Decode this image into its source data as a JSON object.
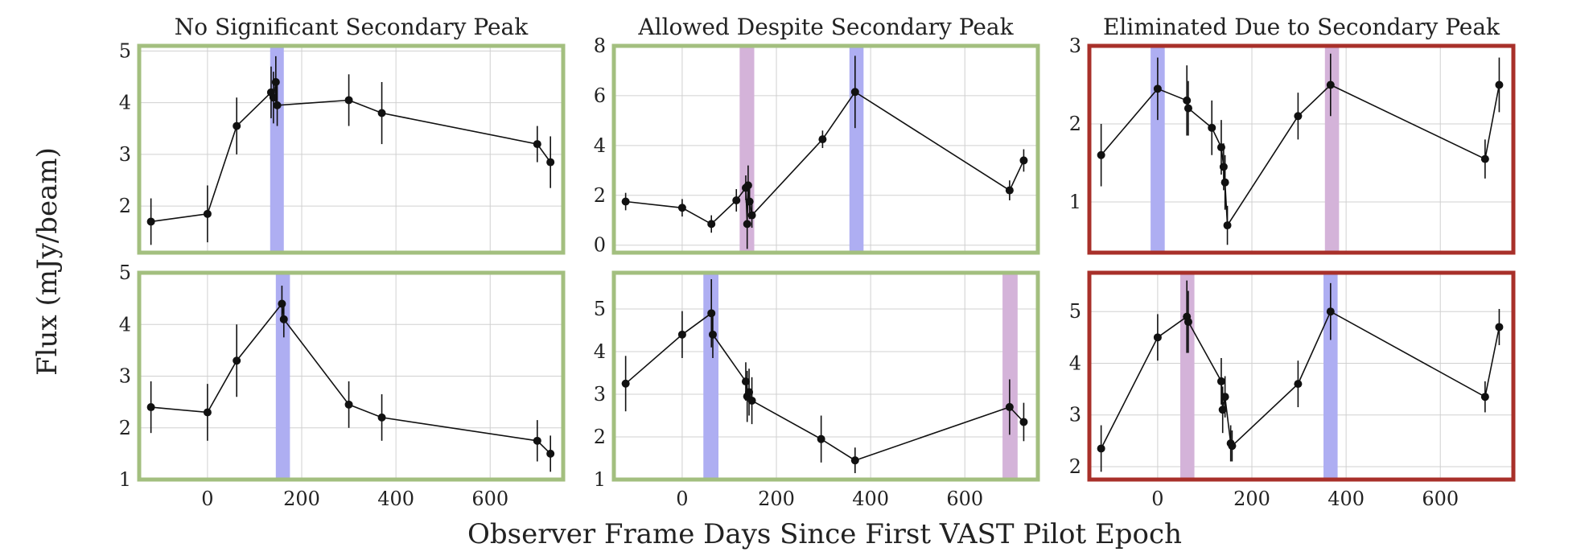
{
  "figure": {
    "ylabel": "Flux (mJy/beam)",
    "xlabel": "Observer Frame Days Since First VAST Pilot Epoch"
  },
  "colors": {
    "accepted_frame": "#a3bf7f",
    "eliminated_frame": "#a8302a",
    "primary_peak": "#aeaef2",
    "secondary_peak": "#d4b3d9",
    "line": "#111111",
    "grid": "#d0d0d0"
  },
  "chart_data": [
    {
      "type": "line",
      "column_title": "No Significant Secondary Peak",
      "status": "accepted",
      "xlim": [
        -145,
        755
      ],
      "ylim": [
        1.1,
        5.1
      ],
      "xticks": [
        0,
        200,
        400,
        600
      ],
      "yticks": [
        2,
        3,
        4,
        5
      ],
      "primary_peak": [
        133,
        162
      ],
      "secondary_peak": null,
      "points": [
        {
          "x": -120,
          "y": 1.7,
          "err": 0.45
        },
        {
          "x": 0,
          "y": 1.85,
          "err": 0.55
        },
        {
          "x": 62,
          "y": 3.55,
          "err": 0.55
        },
        {
          "x": 135,
          "y": 4.2,
          "err": 0.5
        },
        {
          "x": 140,
          "y": 4.1,
          "err": 0.5
        },
        {
          "x": 145,
          "y": 4.4,
          "err": 0.5
        },
        {
          "x": 148,
          "y": 3.95,
          "err": 0.4
        },
        {
          "x": 300,
          "y": 4.05,
          "err": 0.5
        },
        {
          "x": 370,
          "y": 3.8,
          "err": 0.6
        },
        {
          "x": 700,
          "y": 3.2,
          "err": 0.35
        },
        {
          "x": 728,
          "y": 2.85,
          "err": 0.5
        }
      ]
    },
    {
      "type": "line",
      "column_title": "",
      "status": "accepted",
      "xlim": [
        -145,
        755
      ],
      "ylim": [
        1.0,
        5.0
      ],
      "xticks": [
        0,
        200,
        400,
        600
      ],
      "yticks": [
        1,
        2,
        3,
        4,
        5
      ],
      "primary_peak": [
        145,
        175
      ],
      "secondary_peak": null,
      "points": [
        {
          "x": -120,
          "y": 2.4,
          "err": 0.5
        },
        {
          "x": 0,
          "y": 2.3,
          "err": 0.55
        },
        {
          "x": 62,
          "y": 3.3,
          "err": 0.7
        },
        {
          "x": 158,
          "y": 4.4,
          "err": 0.35
        },
        {
          "x": 162,
          "y": 4.1,
          "err": 0.35
        },
        {
          "x": 300,
          "y": 2.45,
          "err": 0.45
        },
        {
          "x": 370,
          "y": 2.2,
          "err": 0.45
        },
        {
          "x": 700,
          "y": 1.75,
          "err": 0.4
        },
        {
          "x": 728,
          "y": 1.5,
          "err": 0.35
        }
      ]
    },
    {
      "type": "line",
      "column_title": "Allowed Despite Secondary Peak",
      "status": "accepted",
      "xlim": [
        -145,
        755
      ],
      "ylim": [
        -0.3,
        8.0
      ],
      "xticks": [
        0,
        200,
        400,
        600
      ],
      "yticks": [
        0,
        2,
        4,
        6,
        8
      ],
      "primary_peak": [
        355,
        385
      ],
      "secondary_peak": [
        122,
        153
      ],
      "points": [
        {
          "x": -120,
          "y": 1.75,
          "err": 0.35
        },
        {
          "x": 0,
          "y": 1.5,
          "err": 0.35
        },
        {
          "x": 62,
          "y": 0.85,
          "err": 0.35
        },
        {
          "x": 115,
          "y": 1.8,
          "err": 0.45
        },
        {
          "x": 135,
          "y": 2.3,
          "err": 0.5
        },
        {
          "x": 138,
          "y": 0.85,
          "err": 1.0
        },
        {
          "x": 140,
          "y": 2.4,
          "err": 0.8
        },
        {
          "x": 143,
          "y": 1.75,
          "err": 0.7
        },
        {
          "x": 148,
          "y": 1.2,
          "err": 0.5
        },
        {
          "x": 298,
          "y": 4.25,
          "err": 0.35
        },
        {
          "x": 367,
          "y": 6.15,
          "err": 1.45
        },
        {
          "x": 695,
          "y": 2.2,
          "err": 0.4
        },
        {
          "x": 725,
          "y": 3.4,
          "err": 0.45
        }
      ]
    },
    {
      "type": "line",
      "column_title": "",
      "status": "accepted",
      "xlim": [
        -145,
        755
      ],
      "ylim": [
        1.0,
        5.85
      ],
      "xticks": [
        0,
        200,
        400,
        600
      ],
      "yticks": [
        1,
        2,
        3,
        4,
        5
      ],
      "primary_peak": [
        45,
        77
      ],
      "secondary_peak": [
        680,
        712
      ],
      "points": [
        {
          "x": -120,
          "y": 3.25,
          "err": 0.65
        },
        {
          "x": 0,
          "y": 4.4,
          "err": 0.55
        },
        {
          "x": 62,
          "y": 4.9,
          "err": 0.8
        },
        {
          "x": 65,
          "y": 4.4,
          "err": 0.55
        },
        {
          "x": 135,
          "y": 3.3,
          "err": 0.45
        },
        {
          "x": 138,
          "y": 2.95,
          "err": 0.6
        },
        {
          "x": 142,
          "y": 3.05,
          "err": 0.55
        },
        {
          "x": 148,
          "y": 2.85,
          "err": 0.55
        },
        {
          "x": 295,
          "y": 1.95,
          "err": 0.55
        },
        {
          "x": 367,
          "y": 1.45,
          "err": 0.3
        },
        {
          "x": 695,
          "y": 2.7,
          "err": 0.65
        },
        {
          "x": 725,
          "y": 2.35,
          "err": 0.45
        }
      ]
    },
    {
      "type": "line",
      "column_title": "Eliminated Due to Secondary Peak",
      "status": "eliminated",
      "xlim": [
        -145,
        755
      ],
      "ylim": [
        0.35,
        3.0
      ],
      "xticks": [
        0,
        200,
        400,
        600
      ],
      "yticks": [
        1,
        2,
        3
      ],
      "primary_peak": [
        -15,
        15
      ],
      "secondary_peak": [
        355,
        385
      ],
      "points": [
        {
          "x": -120,
          "y": 1.6,
          "err": 0.4
        },
        {
          "x": 0,
          "y": 2.45,
          "err": 0.4
        },
        {
          "x": 62,
          "y": 2.3,
          "err": 0.45
        },
        {
          "x": 65,
          "y": 2.2,
          "err": 0.35
        },
        {
          "x": 115,
          "y": 1.95,
          "err": 0.35
        },
        {
          "x": 135,
          "y": 1.7,
          "err": 0.35
        },
        {
          "x": 140,
          "y": 1.45,
          "err": 0.3
        },
        {
          "x": 143,
          "y": 1.25,
          "err": 0.35
        },
        {
          "x": 148,
          "y": 0.7,
          "err": 0.25
        },
        {
          "x": 298,
          "y": 2.1,
          "err": 0.3
        },
        {
          "x": 367,
          "y": 2.5,
          "err": 0.4
        },
        {
          "x": 695,
          "y": 1.55,
          "err": 0.25
        },
        {
          "x": 725,
          "y": 2.5,
          "err": 0.35
        }
      ]
    },
    {
      "type": "line",
      "column_title": "",
      "status": "eliminated",
      "xlim": [
        -145,
        755
      ],
      "ylim": [
        1.75,
        5.75
      ],
      "xticks": [
        0,
        200,
        400,
        600
      ],
      "yticks": [
        2,
        3,
        4,
        5
      ],
      "primary_peak": [
        352,
        382
      ],
      "secondary_peak": [
        48,
        78
      ],
      "points": [
        {
          "x": -120,
          "y": 2.35,
          "err": 0.45
        },
        {
          "x": 0,
          "y": 4.5,
          "err": 0.45
        },
        {
          "x": 62,
          "y": 4.9,
          "err": 0.7
        },
        {
          "x": 65,
          "y": 4.8,
          "err": 0.6
        },
        {
          "x": 135,
          "y": 3.65,
          "err": 0.45
        },
        {
          "x": 138,
          "y": 3.1,
          "err": 0.45
        },
        {
          "x": 143,
          "y": 3.35,
          "err": 0.4
        },
        {
          "x": 155,
          "y": 2.45,
          "err": 0.35
        },
        {
          "x": 158,
          "y": 2.4,
          "err": 0.3
        },
        {
          "x": 298,
          "y": 3.6,
          "err": 0.45
        },
        {
          "x": 367,
          "y": 5.0,
          "err": 0.55
        },
        {
          "x": 695,
          "y": 3.35,
          "err": 0.3
        },
        {
          "x": 725,
          "y": 4.7,
          "err": 0.35
        }
      ]
    }
  ]
}
